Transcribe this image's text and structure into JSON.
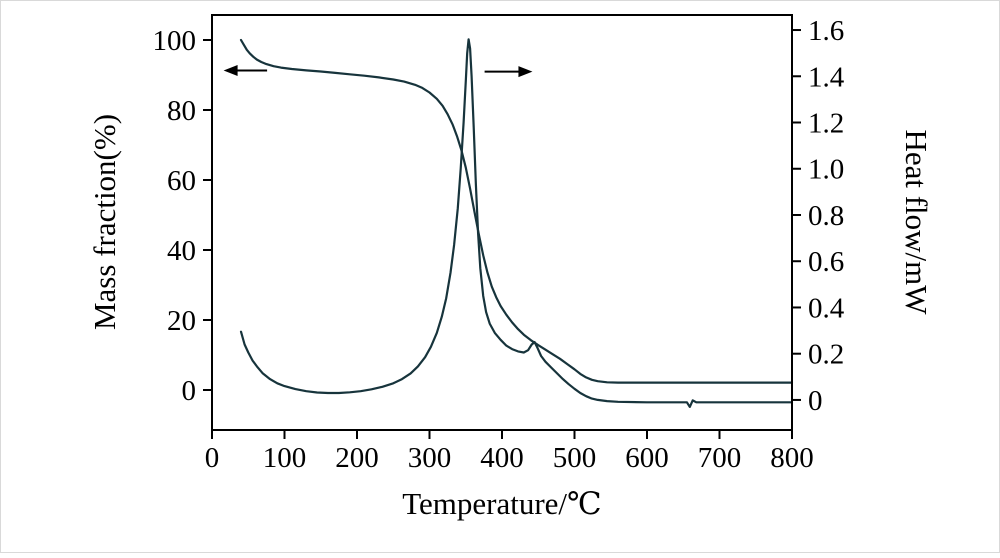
{
  "figure": {
    "background": "#ffffff",
    "description": "TG-DSC thermal analysis curves: mass fraction and heat flow versus temperature"
  },
  "chart_data": {
    "type": "line",
    "title": "",
    "xlabel": "Temperature/℃",
    "ylabel_left": "Mass fraction(%)",
    "ylabel_right": "Heat flow/mW",
    "xlim": [
      0,
      800
    ],
    "x_ticks": [
      "0",
      "100",
      "200",
      "300",
      "400",
      "500",
      "600",
      "700",
      "800"
    ],
    "ylim_left": [
      -11.43,
      107.14
    ],
    "y_ticks_left": [
      "0",
      "20",
      "40",
      "60",
      "80",
      "100"
    ],
    "ylim_right": [
      -0.13,
      1.665
    ],
    "y_ticks_right": [
      "0",
      "0.2",
      "0.4",
      "0.6",
      "0.8",
      "1.0",
      "1.2",
      "1.4",
      "1.6"
    ],
    "grid": false,
    "legend": "none",
    "colors": {
      "line": "#17343c",
      "axis": "#000000"
    },
    "series": [
      {
        "id": "mass-fraction-curve",
        "name": "TG mass fraction",
        "axis": "left",
        "points": [
          [
            40,
            100
          ],
          [
            44,
            98.6
          ],
          [
            48,
            97.2
          ],
          [
            52,
            96.2
          ],
          [
            57,
            95.2
          ],
          [
            62,
            94.4
          ],
          [
            68,
            93.7
          ],
          [
            75,
            93.1
          ],
          [
            85,
            92.5
          ],
          [
            95,
            92.1
          ],
          [
            110,
            91.7
          ],
          [
            130,
            91.3
          ],
          [
            150,
            91.0
          ],
          [
            170,
            90.6
          ],
          [
            190,
            90.2
          ],
          [
            210,
            89.8
          ],
          [
            230,
            89.3
          ],
          [
            250,
            88.7
          ],
          [
            265,
            88.1
          ],
          [
            280,
            87.2
          ],
          [
            290,
            86.3
          ],
          [
            300,
            85.0
          ],
          [
            310,
            83.2
          ],
          [
            318,
            81.2
          ],
          [
            325,
            78.8
          ],
          [
            332,
            75.8
          ],
          [
            338,
            72.5
          ],
          [
            344,
            68.5
          ],
          [
            350,
            63.5
          ],
          [
            356,
            57.5
          ],
          [
            362,
            51.0
          ],
          [
            368,
            44.5
          ],
          [
            374,
            38.5
          ],
          [
            380,
            33.5
          ],
          [
            386,
            29.5
          ],
          [
            392,
            26.5
          ],
          [
            398,
            24.0
          ],
          [
            406,
            21.5
          ],
          [
            414,
            19.3
          ],
          [
            422,
            17.4
          ],
          [
            430,
            15.8
          ],
          [
            440,
            14.2
          ],
          [
            450,
            12.8
          ],
          [
            460,
            11.5
          ],
          [
            470,
            10.2
          ],
          [
            480,
            8.9
          ],
          [
            490,
            7.4
          ],
          [
            500,
            5.9
          ],
          [
            508,
            4.6
          ],
          [
            516,
            3.6
          ],
          [
            524,
            2.9
          ],
          [
            532,
            2.5
          ],
          [
            545,
            2.2
          ],
          [
            560,
            2.1
          ],
          [
            600,
            2.1
          ],
          [
            700,
            2.1
          ],
          [
            800,
            2.1
          ]
        ]
      },
      {
        "id": "heat-flow-curve",
        "name": "DSC heat flow",
        "axis": "right",
        "points": [
          [
            40,
            0.295
          ],
          [
            45,
            0.24
          ],
          [
            50,
            0.205
          ],
          [
            56,
            0.17
          ],
          [
            62,
            0.145
          ],
          [
            70,
            0.115
          ],
          [
            80,
            0.09
          ],
          [
            90,
            0.072
          ],
          [
            100,
            0.06
          ],
          [
            115,
            0.047
          ],
          [
            130,
            0.038
          ],
          [
            145,
            0.032
          ],
          [
            160,
            0.03
          ],
          [
            175,
            0.03
          ],
          [
            190,
            0.033
          ],
          [
            205,
            0.038
          ],
          [
            220,
            0.046
          ],
          [
            235,
            0.057
          ],
          [
            250,
            0.072
          ],
          [
            262,
            0.09
          ],
          [
            274,
            0.115
          ],
          [
            284,
            0.145
          ],
          [
            294,
            0.185
          ],
          [
            302,
            0.23
          ],
          [
            310,
            0.29
          ],
          [
            317,
            0.36
          ],
          [
            323,
            0.44
          ],
          [
            329,
            0.55
          ],
          [
            334,
            0.67
          ],
          [
            339,
            0.83
          ],
          [
            343,
            1.0
          ],
          [
            347,
            1.2
          ],
          [
            350,
            1.38
          ],
          [
            352,
            1.5
          ],
          [
            354,
            1.56
          ],
          [
            356,
            1.52
          ],
          [
            358,
            1.4
          ],
          [
            361,
            1.18
          ],
          [
            364,
            0.93
          ],
          [
            367,
            0.72
          ],
          [
            370,
            0.57
          ],
          [
            374,
            0.45
          ],
          [
            378,
            0.38
          ],
          [
            383,
            0.33
          ],
          [
            390,
            0.29
          ],
          [
            398,
            0.26
          ],
          [
            406,
            0.235
          ],
          [
            414,
            0.22
          ],
          [
            422,
            0.21
          ],
          [
            430,
            0.205
          ],
          [
            436,
            0.215
          ],
          [
            441,
            0.24
          ],
          [
            445,
            0.25
          ],
          [
            449,
            0.225
          ],
          [
            454,
            0.19
          ],
          [
            460,
            0.165
          ],
          [
            468,
            0.14
          ],
          [
            476,
            0.115
          ],
          [
            484,
            0.09
          ],
          [
            492,
            0.068
          ],
          [
            500,
            0.048
          ],
          [
            508,
            0.03
          ],
          [
            516,
            0.016
          ],
          [
            524,
            0.006
          ],
          [
            532,
            0.0
          ],
          [
            545,
            -0.005
          ],
          [
            560,
            -0.008
          ],
          [
            600,
            -0.01
          ],
          [
            640,
            -0.01
          ],
          [
            655,
            -0.01
          ],
          [
            659,
            -0.03
          ],
          [
            663,
            -0.002
          ],
          [
            668,
            -0.01
          ],
          [
            700,
            -0.01
          ],
          [
            750,
            -0.01
          ],
          [
            800,
            -0.01
          ]
        ]
      }
    ],
    "annotations": [
      {
        "id": "left-axis-arrow",
        "direction": "left",
        "axis": "left",
        "x_start": 76,
        "x_end": 16,
        "y": 91.3
      },
      {
        "id": "right-axis-arrow",
        "direction": "right",
        "axis": "right",
        "x_start": 376,
        "x_end": 442,
        "y": 1.42
      }
    ]
  }
}
